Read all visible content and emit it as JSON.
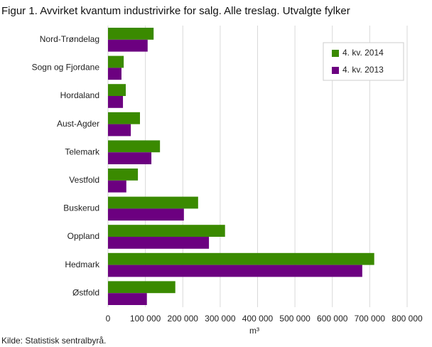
{
  "chart_data": {
    "type": "hbar",
    "title": "Figur 1. Avvirket kvantum industrivirke for salg. Alle treslag. Utvalgte fylker",
    "categories": [
      "Nord-Trøndelag",
      "Sogn og Fjordane",
      "Hordaland",
      "Aust-Agder",
      "Telemark",
      "Vestfold",
      "Buskerud",
      "Oppland",
      "Hedmark",
      "Østfold"
    ],
    "series": [
      {
        "name": "4. kv. 2014",
        "color": "#3a8a00",
        "values": [
          122000,
          42000,
          47500,
          85500,
          139000,
          80000,
          241000,
          313000,
          712000,
          180000
        ]
      },
      {
        "name": "4. kv. 2013",
        "color": "#6c0080",
        "values": [
          106000,
          36000,
          40000,
          61000,
          116000,
          49000,
          203000,
          270000,
          680000,
          104000
        ]
      }
    ],
    "xlim": [
      0,
      800000
    ],
    "xticks": [
      0,
      {
        "value": 100000,
        "label": "100 000"
      },
      {
        "value": 200000,
        "label": "200 000"
      },
      {
        "value": 300000,
        "label": "300 000"
      },
      {
        "value": 400000,
        "label": "400 000"
      },
      {
        "value": 500000,
        "label": "500 000"
      },
      {
        "value": 600000,
        "label": "600 000"
      },
      {
        "value": 700000,
        "label": "700 000"
      },
      {
        "value": 800000,
        "label": "800 000"
      }
    ],
    "xlabel": "m³",
    "grid": true,
    "legend": "upper right",
    "source": "Kilde: Statistisk sentralbyrå."
  }
}
